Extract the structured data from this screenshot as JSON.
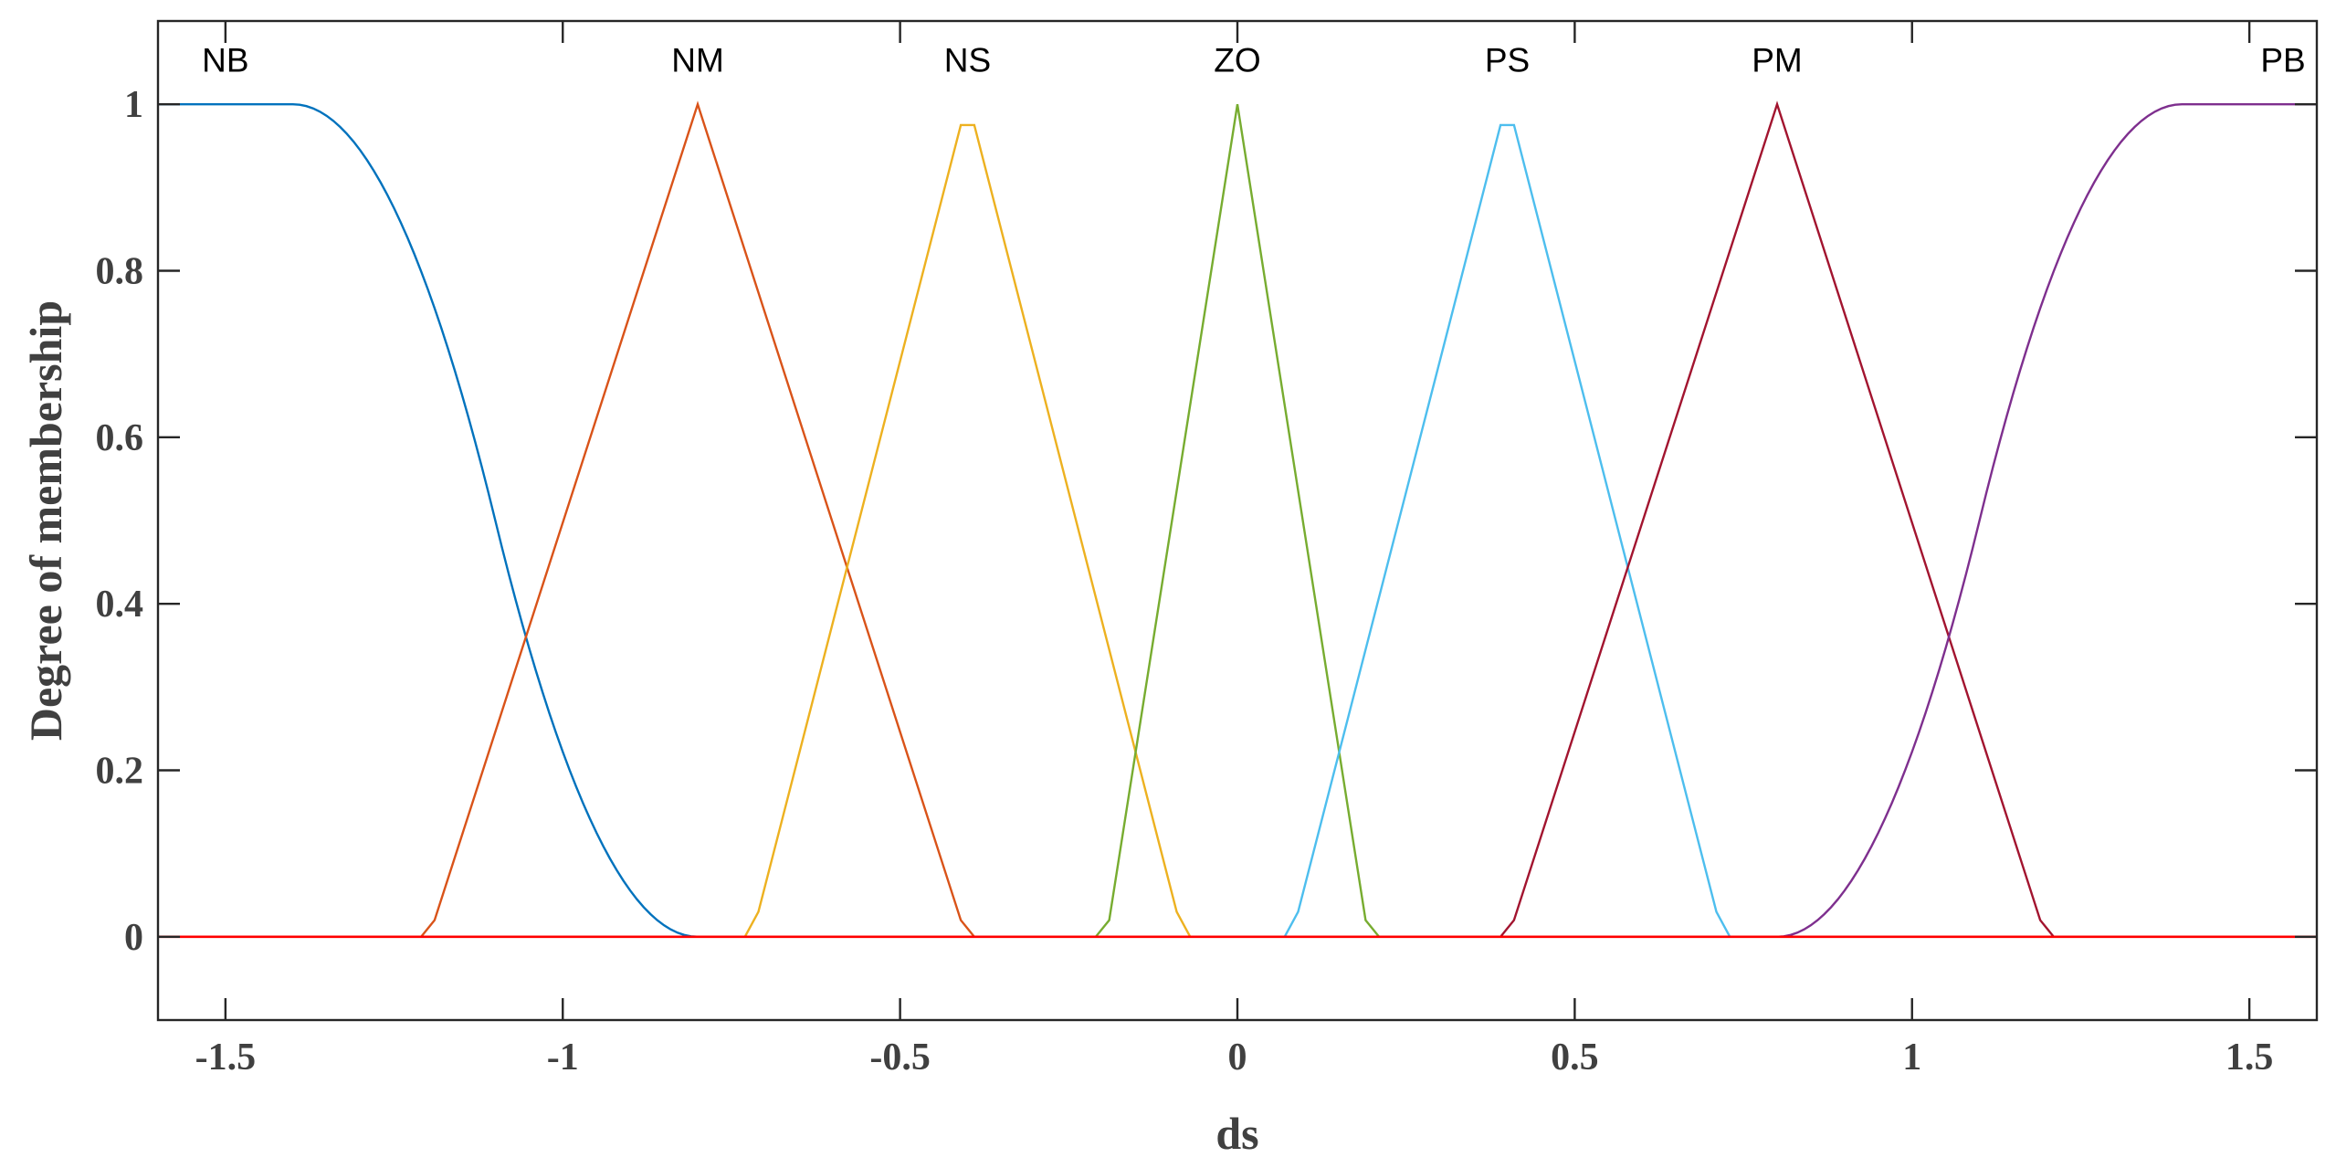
{
  "chart_data": {
    "type": "line",
    "xlabel": "ds",
    "ylabel": "Degree of membership",
    "xlim": [
      -1.6,
      1.6
    ],
    "ylim": [
      -0.1,
      1.1
    ],
    "xticks": [
      -1.5,
      -1,
      -0.5,
      0,
      0.5,
      1,
      1.5
    ],
    "xtick_labels": [
      "-1.5",
      "-1",
      "-0.5",
      "0",
      "0.5",
      "1",
      "1.5"
    ],
    "yticks": [
      0,
      0.2,
      0.4,
      0.6,
      0.8,
      1
    ],
    "ytick_labels": [
      "0",
      "0.2",
      "0.4",
      "0.6",
      "0.8",
      "1"
    ],
    "grid": false,
    "series": [
      {
        "name": "NB",
        "color": "#0072BD",
        "label_at": [
          -1.5,
          1.05
        ],
        "kind": "zmf",
        "params": [
          -1.4,
          -0.8
        ]
      },
      {
        "name": "NM",
        "color": "#D95319",
        "label_at": [
          -0.8,
          1.05
        ],
        "kind": "points",
        "points": [
          [
            -1.6,
            0
          ],
          [
            -1.21,
            0
          ],
          [
            -1.19,
            0.02
          ],
          [
            -0.8,
            1
          ],
          [
            -0.41,
            0.02
          ],
          [
            -0.39,
            0
          ],
          [
            1.6,
            0
          ]
        ]
      },
      {
        "name": "NS",
        "color": "#EDB120",
        "label_at": [
          -0.4,
          1.05
        ],
        "kind": "points",
        "points": [
          [
            -1.6,
            0
          ],
          [
            -0.73,
            0
          ],
          [
            -0.71,
            0.03
          ],
          [
            -0.41,
            0.975
          ],
          [
            -0.39,
            0.975
          ],
          [
            -0.09,
            0.03
          ],
          [
            -0.07,
            0
          ],
          [
            1.6,
            0
          ]
        ]
      },
      {
        "name": "ZO",
        "color": "#77AC30",
        "label_at": [
          0,
          1.05
        ],
        "kind": "points",
        "points": [
          [
            -1.6,
            0
          ],
          [
            -0.21,
            0
          ],
          [
            -0.19,
            0.02
          ],
          [
            0,
            1
          ],
          [
            0.19,
            0.02
          ],
          [
            0.21,
            0
          ],
          [
            1.6,
            0
          ]
        ]
      },
      {
        "name": "PS",
        "color": "#4DBEEE",
        "label_at": [
          0.4,
          1.05
        ],
        "kind": "points",
        "points": [
          [
            -1.6,
            0
          ],
          [
            0.07,
            0
          ],
          [
            0.09,
            0.03
          ],
          [
            0.39,
            0.975
          ],
          [
            0.41,
            0.975
          ],
          [
            0.71,
            0.03
          ],
          [
            0.73,
            0
          ],
          [
            1.6,
            0
          ]
        ]
      },
      {
        "name": "PM",
        "color": "#A2142F",
        "label_at": [
          0.8,
          1.05
        ],
        "kind": "points",
        "points": [
          [
            -1.6,
            0
          ],
          [
            0.39,
            0
          ],
          [
            0.41,
            0.02
          ],
          [
            0.8,
            1
          ],
          [
            1.19,
            0.02
          ],
          [
            1.21,
            0
          ],
          [
            1.6,
            0
          ]
        ]
      },
      {
        "name": "PB",
        "color": "#7E2F8E",
        "label_at": [
          1.55,
          1.05
        ],
        "kind": "smf",
        "params": [
          0.8,
          1.4
        ]
      }
    ],
    "baseline": {
      "y": 0,
      "color": "#FF0000"
    }
  }
}
